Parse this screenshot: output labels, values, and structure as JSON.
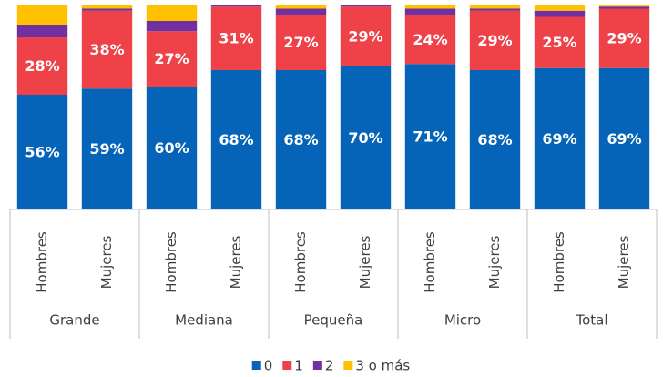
{
  "chart_data": {
    "type": "stacked_bar",
    "groups": [
      {
        "name": "Grande",
        "categories": [
          "Hombres",
          "Mujeres"
        ]
      },
      {
        "name": "Mediana",
        "categories": [
          "Hombres",
          "Mujeres"
        ]
      },
      {
        "name": "Pequeña",
        "categories": [
          "Hombres",
          "Mujeres"
        ]
      },
      {
        "name": "Micro",
        "categories": [
          "Hombres",
          "Mujeres"
        ]
      },
      {
        "name": "Total",
        "categories": [
          "Hombres",
          "Mujeres"
        ]
      }
    ],
    "series": [
      {
        "name": "0",
        "color": "#0563b8",
        "values": [
          56,
          59,
          60,
          68,
          68,
          70,
          71,
          68,
          69,
          69
        ],
        "value_labels": [
          "56%",
          "59%",
          "60%",
          "68%",
          "68%",
          "70%",
          "71%",
          "68%",
          "69%",
          "69%"
        ]
      },
      {
        "name": "1",
        "color": "#ee4148",
        "values": [
          28,
          38,
          27,
          31,
          27,
          29,
          24,
          29,
          25,
          29
        ],
        "value_labels": [
          "28%",
          "38%",
          "27%",
          "31%",
          "27%",
          "29%",
          "24%",
          "29%",
          "25%",
          "29%"
        ]
      },
      {
        "name": "2",
        "color": "#7030a0",
        "values": [
          6,
          1,
          5,
          1,
          3,
          1,
          3,
          1,
          3,
          1
        ]
      },
      {
        "name": "3 o más",
        "color": "#ffc000",
        "values": [
          10,
          2,
          8,
          0,
          2,
          0,
          2,
          2,
          3,
          1
        ]
      }
    ],
    "ylim": [
      0,
      100
    ],
    "legend": "bottom"
  }
}
